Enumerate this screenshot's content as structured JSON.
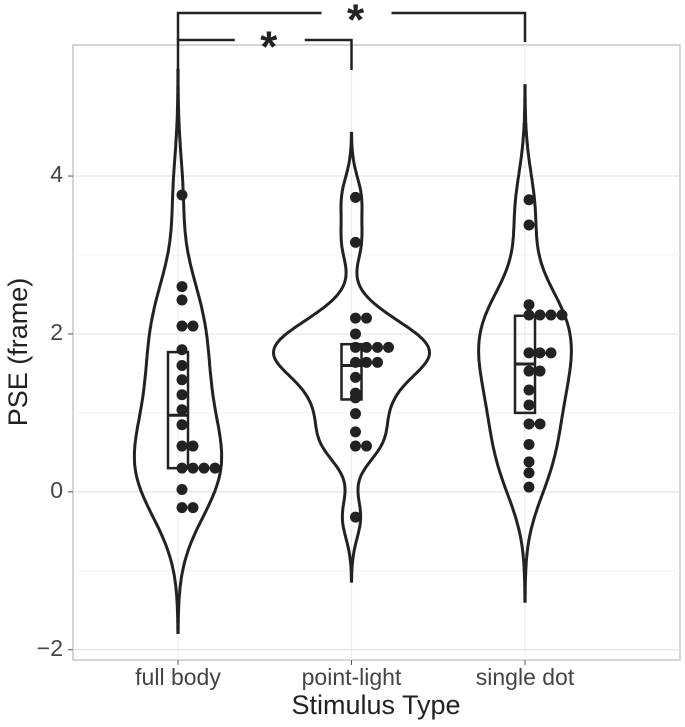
{
  "chart_data": {
    "type": "violin",
    "x_label": "Stimulus Type",
    "y_label": "PSE (frame)",
    "categories": [
      "full body",
      "point-light",
      "single dot"
    ],
    "series": [
      {
        "name": "full body",
        "values": [
          3.76,
          2.6,
          2.43,
          2.1,
          2.1,
          1.8,
          1.6,
          1.42,
          1.23,
          1.04,
          0.85,
          0.58,
          0.58,
          0.3,
          0.3,
          0.3,
          0.3,
          0.03,
          -0.2,
          -0.2
        ],
        "q1": 0.3,
        "median": 0.97,
        "q3": 1.77
      },
      {
        "name": "point-light",
        "values": [
          3.73,
          3.16,
          2.2,
          2.2,
          2.0,
          1.83,
          1.83,
          1.83,
          1.83,
          1.64,
          1.64,
          1.64,
          1.45,
          1.25,
          1.19,
          0.99,
          0.76,
          0.58,
          0.58,
          -0.32
        ],
        "q1": 1.17,
        "median": 1.6,
        "q3": 1.87
      },
      {
        "name": "single dot",
        "values": [
          3.7,
          3.38,
          2.37,
          2.24,
          2.24,
          2.24,
          2.24,
          1.76,
          1.76,
          1.76,
          1.53,
          1.53,
          1.29,
          1.1,
          0.86,
          0.86,
          0.6,
          0.38,
          0.24,
          0.06
        ],
        "q1": 1.0,
        "median": 1.62,
        "q3": 2.23
      }
    ],
    "color": "#222222",
    "ylim": [
      -2.13,
      5.66
    ],
    "yticks": [
      {
        "value": -2,
        "label": "−2"
      },
      0,
      2,
      4
    ],
    "grid": true,
    "annotations": [
      {
        "text": "*",
        "between": [
          "full body",
          "point-light"
        ]
      },
      {
        "text": "*",
        "between": [
          "full body",
          "single dot"
        ]
      }
    ]
  }
}
